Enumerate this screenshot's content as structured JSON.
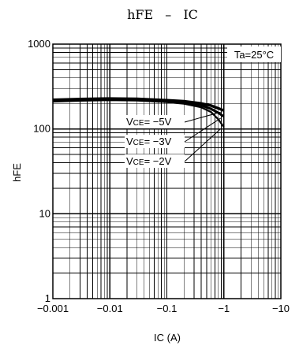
{
  "chart_data": {
    "type": "line",
    "title_main": "hFE",
    "title_sep": "–",
    "title_x": "IC",
    "ylabel": "hFE",
    "xlabel": "IC (A)",
    "x_scale": "log",
    "y_scale": "log",
    "xlim": [
      -0.001,
      -10
    ],
    "ylim": [
      1,
      1000
    ],
    "grid": true,
    "x_ticks": [
      "−0.001",
      "−0.01",
      "−0.1",
      "−1",
      "−10"
    ],
    "x_tick_values": [
      0.001,
      0.01,
      0.1,
      1,
      10
    ],
    "y_ticks": [
      "1",
      "10",
      "100",
      "1000"
    ],
    "y_tick_values": [
      1,
      10,
      100,
      1000
    ],
    "condition_label": "Ta=25°C",
    "series": [
      {
        "name": "VCE= −5V",
        "vce_prefix": "V",
        "vce_sub": "CE",
        "vce_value": "= −5V",
        "x": [
          -0.001,
          -0.003,
          -0.01,
          -0.03,
          -0.1,
          -0.2,
          -0.4,
          -0.6,
          -0.8,
          -1.0
        ],
        "y": [
          220,
          225,
          228,
          226,
          218,
          212,
          200,
          188,
          175,
          165
        ]
      },
      {
        "name": "VCE= −3V",
        "vce_prefix": "V",
        "vce_sub": "CE",
        "vce_value": "= −3V",
        "x": [
          -0.001,
          -0.003,
          -0.01,
          -0.03,
          -0.1,
          -0.2,
          -0.4,
          -0.6,
          -0.8,
          -1.0
        ],
        "y": [
          215,
          220,
          223,
          221,
          213,
          205,
          190,
          172,
          155,
          140
        ]
      },
      {
        "name": "VCE= −2V",
        "vce_prefix": "V",
        "vce_sub": "CE",
        "vce_value": "= −2V",
        "x": [
          -0.001,
          -0.003,
          -0.01,
          -0.03,
          -0.1,
          -0.2,
          -0.4,
          -0.6,
          -0.8,
          -1.0
        ],
        "y": [
          210,
          215,
          218,
          216,
          207,
          198,
          180,
          158,
          130,
          105
        ]
      }
    ]
  }
}
